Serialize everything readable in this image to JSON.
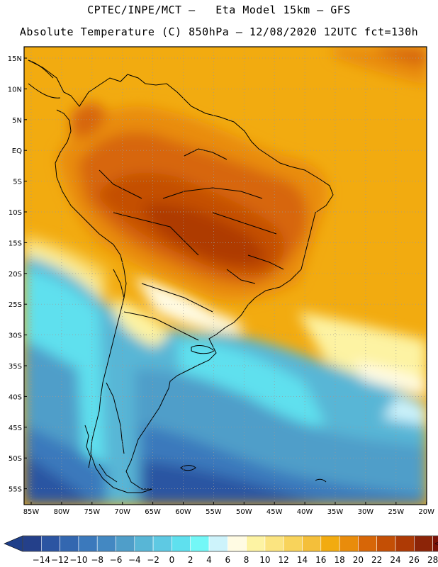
{
  "header": {
    "line1": "CPTEC/INPE/MCT –   Eta Model 15km – GFS",
    "line2": "Absolute Temperature (C) 850hPa – 12/08/2020 12UTC fct=130h"
  },
  "map": {
    "lat_labels": [
      "15N",
      "10N",
      "5N",
      "EQ",
      "5S",
      "10S",
      "15S",
      "20S",
      "25S",
      "30S",
      "35S",
      "40S",
      "45S",
      "50S",
      "55S"
    ],
    "lon_labels": [
      "85W",
      "80W",
      "75W",
      "70W",
      "65W",
      "60W",
      "55W",
      "50W",
      "45W",
      "40W",
      "35W",
      "30W",
      "25W",
      "20W"
    ],
    "lat_range": [
      15,
      -55
    ],
    "lon_range": [
      -85,
      -20
    ],
    "grid": "dotted"
  },
  "colorbar": {
    "labels": [
      "-14",
      "-12",
      "-10",
      "-8",
      "-6",
      "-4",
      "-2",
      "0",
      "2",
      "4",
      "6",
      "8",
      "10",
      "12",
      "14",
      "16",
      "18",
      "20",
      "22",
      "24",
      "26",
      "28"
    ],
    "colors": [
      "#24408a",
      "#2c55a2",
      "#3367b0",
      "#3b79bc",
      "#4388c2",
      "#4f9ec9",
      "#58b6d6",
      "#5ec9e3",
      "#5fe0ee",
      "#73f7f7",
      "#cdf3fb",
      "#fffbe3",
      "#fdf3a3",
      "#fbe480",
      "#f8d35b",
      "#f4bf3a",
      "#f2ab10",
      "#e98c0b",
      "#d76607",
      "#c44f05",
      "#ae3a05",
      "#8c2407",
      "#7b1208"
    ],
    "under_color": "#1f3f8a",
    "over_color": "#7a0f1a"
  }
}
